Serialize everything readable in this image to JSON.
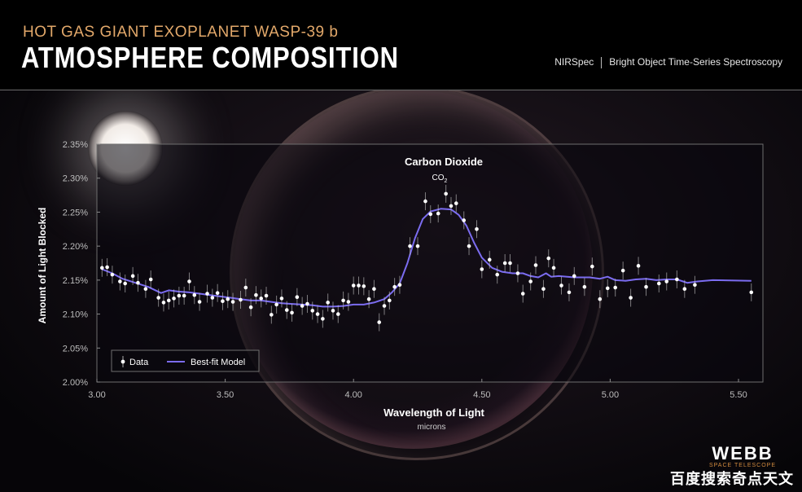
{
  "header": {
    "subtitle": "HOT GAS GIANT EXOPLANET WASP-39 b",
    "title": "ATMOSPHERE COMPOSITION",
    "instrument": "NIRSpec",
    "mode": "Bright Object Time-Series Spectroscopy"
  },
  "logo": {
    "main": "WEBB",
    "sub": "SPACE TELESCOPE"
  },
  "watermark": "百度搜索奇点天文",
  "colors": {
    "model_line": "#7b6cf0",
    "subtitle": "#e2a86a",
    "data_point": "#ffffff"
  },
  "chart_data": {
    "type": "scatter",
    "xlabel": "Wavelength of Light",
    "xunit": "microns",
    "ylabel": "Amount of Light Blocked",
    "xlim": [
      3.0,
      5.6
    ],
    "ylim": [
      2.0,
      2.35
    ],
    "xticks": [
      "3.00",
      "3.50",
      "4.00",
      "4.50",
      "5.00",
      "5.50"
    ],
    "yticks": [
      "2.00%",
      "2.05%",
      "2.10%",
      "2.15%",
      "2.20%",
      "2.25%",
      "2.30%",
      "2.35%"
    ],
    "annotation": {
      "label": "Carbon Dioxide",
      "formula": "CO",
      "subscript": "2",
      "x": 4.35,
      "y": 2.3
    },
    "legend": {
      "data_label": "Data",
      "model_label": "Best-fit Model",
      "position": "bottom-left"
    },
    "series": [
      {
        "name": "Data",
        "points": [
          [
            3.02,
            2.168
          ],
          [
            3.04,
            2.169
          ],
          [
            3.06,
            2.158
          ],
          [
            3.09,
            2.148
          ],
          [
            3.11,
            2.145
          ],
          [
            3.14,
            2.156
          ],
          [
            3.16,
            2.146
          ],
          [
            3.19,
            2.137
          ],
          [
            3.21,
            2.151
          ],
          [
            3.24,
            2.124
          ],
          [
            3.26,
            2.117
          ],
          [
            3.28,
            2.12
          ],
          [
            3.3,
            2.123
          ],
          [
            3.32,
            2.127
          ],
          [
            3.34,
            2.127
          ],
          [
            3.36,
            2.148
          ],
          [
            3.38,
            2.128
          ],
          [
            3.4,
            2.118
          ],
          [
            3.43,
            2.13
          ],
          [
            3.45,
            2.124
          ],
          [
            3.47,
            2.131
          ],
          [
            3.49,
            2.119
          ],
          [
            3.51,
            2.122
          ],
          [
            3.53,
            2.118
          ],
          [
            3.56,
            2.121
          ],
          [
            3.58,
            2.139
          ],
          [
            3.6,
            2.11
          ],
          [
            3.62,
            2.128
          ],
          [
            3.64,
            2.123
          ],
          [
            3.66,
            2.127
          ],
          [
            3.68,
            2.099
          ],
          [
            3.7,
            2.114
          ],
          [
            3.72,
            2.123
          ],
          [
            3.74,
            2.106
          ],
          [
            3.76,
            2.102
          ],
          [
            3.78,
            2.125
          ],
          [
            3.8,
            2.112
          ],
          [
            3.82,
            2.115
          ],
          [
            3.84,
            2.105
          ],
          [
            3.86,
            2.1
          ],
          [
            3.88,
            2.093
          ],
          [
            3.9,
            2.117
          ],
          [
            3.92,
            2.105
          ],
          [
            3.94,
            2.1
          ],
          [
            3.96,
            2.12
          ],
          [
            3.98,
            2.118
          ],
          [
            4.0,
            2.142
          ],
          [
            4.02,
            2.142
          ],
          [
            4.04,
            2.141
          ],
          [
            4.06,
            2.122
          ],
          [
            4.08,
            2.137
          ],
          [
            4.1,
            2.088
          ],
          [
            4.12,
            2.112
          ],
          [
            4.14,
            2.12
          ],
          [
            4.16,
            2.14
          ],
          [
            4.18,
            2.143
          ],
          [
            4.22,
            2.2
          ],
          [
            4.25,
            2.2
          ],
          [
            4.28,
            2.266
          ],
          [
            4.3,
            2.247
          ],
          [
            4.33,
            2.248
          ],
          [
            4.36,
            2.277
          ],
          [
            4.38,
            2.259
          ],
          [
            4.4,
            2.263
          ],
          [
            4.43,
            2.238
          ],
          [
            4.45,
            2.2
          ],
          [
            4.48,
            2.225
          ],
          [
            4.5,
            2.166
          ],
          [
            4.53,
            2.18
          ],
          [
            4.56,
            2.158
          ],
          [
            4.59,
            2.175
          ],
          [
            4.61,
            2.175
          ],
          [
            4.64,
            2.16
          ],
          [
            4.66,
            2.13
          ],
          [
            4.69,
            2.148
          ],
          [
            4.71,
            2.172
          ],
          [
            4.74,
            2.137
          ],
          [
            4.76,
            2.182
          ],
          [
            4.78,
            2.168
          ],
          [
            4.81,
            2.142
          ],
          [
            4.84,
            2.132
          ],
          [
            4.86,
            2.156
          ],
          [
            4.9,
            2.14
          ],
          [
            4.93,
            2.17
          ],
          [
            4.96,
            2.122
          ],
          [
            4.99,
            2.138
          ],
          [
            5.02,
            2.139
          ],
          [
            5.05,
            2.164
          ],
          [
            5.08,
            2.124
          ],
          [
            5.11,
            2.171
          ],
          [
            5.14,
            2.14
          ],
          [
            5.19,
            2.145
          ],
          [
            5.22,
            2.148
          ],
          [
            5.26,
            2.151
          ],
          [
            5.29,
            2.137
          ],
          [
            5.33,
            2.143
          ],
          [
            5.55,
            2.132
          ]
        ]
      },
      {
        "name": "Best-fit Model",
        "points": [
          [
            3.02,
            2.166
          ],
          [
            3.06,
            2.16
          ],
          [
            3.1,
            2.152
          ],
          [
            3.15,
            2.146
          ],
          [
            3.2,
            2.14
          ],
          [
            3.25,
            2.131
          ],
          [
            3.28,
            2.135
          ],
          [
            3.32,
            2.133
          ],
          [
            3.36,
            2.132
          ],
          [
            3.4,
            2.13
          ],
          [
            3.44,
            2.128
          ],
          [
            3.48,
            2.126
          ],
          [
            3.52,
            2.124
          ],
          [
            3.56,
            2.122
          ],
          [
            3.6,
            2.12
          ],
          [
            3.64,
            2.12
          ],
          [
            3.68,
            2.118
          ],
          [
            3.72,
            2.116
          ],
          [
            3.76,
            2.115
          ],
          [
            3.8,
            2.114
          ],
          [
            3.84,
            2.113
          ],
          [
            3.88,
            2.111
          ],
          [
            3.92,
            2.111
          ],
          [
            3.96,
            2.112
          ],
          [
            4.0,
            2.114
          ],
          [
            4.04,
            2.114
          ],
          [
            4.08,
            2.117
          ],
          [
            4.12,
            2.122
          ],
          [
            4.15,
            2.132
          ],
          [
            4.18,
            2.145
          ],
          [
            4.21,
            2.175
          ],
          [
            4.24,
            2.212
          ],
          [
            4.27,
            2.24
          ],
          [
            4.3,
            2.251
          ],
          [
            4.34,
            2.255
          ],
          [
            4.38,
            2.254
          ],
          [
            4.41,
            2.246
          ],
          [
            4.44,
            2.23
          ],
          [
            4.47,
            2.205
          ],
          [
            4.5,
            2.183
          ],
          [
            4.54,
            2.168
          ],
          [
            4.58,
            2.162
          ],
          [
            4.62,
            2.16
          ],
          [
            4.66,
            2.16
          ],
          [
            4.69,
            2.156
          ],
          [
            4.72,
            2.154
          ],
          [
            4.75,
            2.16
          ],
          [
            4.77,
            2.155
          ],
          [
            4.8,
            2.156
          ],
          [
            4.86,
            2.154
          ],
          [
            4.92,
            2.154
          ],
          [
            4.96,
            2.152
          ],
          [
            4.99,
            2.155
          ],
          [
            5.02,
            2.15
          ],
          [
            5.06,
            2.149
          ],
          [
            5.1,
            2.151
          ],
          [
            5.14,
            2.152
          ],
          [
            5.18,
            2.15
          ],
          [
            5.22,
            2.151
          ],
          [
            5.26,
            2.151
          ],
          [
            5.3,
            2.146
          ],
          [
            5.34,
            2.148
          ],
          [
            5.4,
            2.15
          ],
          [
            5.55,
            2.149
          ]
        ]
      }
    ]
  }
}
